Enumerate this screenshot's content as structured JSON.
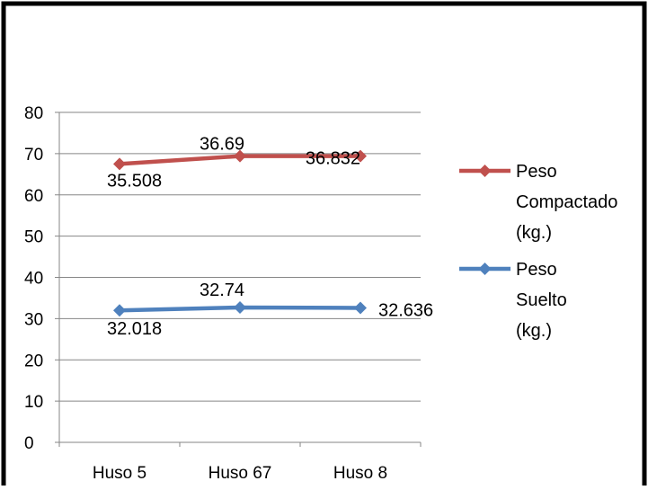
{
  "chart_data": {
    "type": "line",
    "categories": [
      "Huso 5",
      "Huso 67",
      "Huso 8"
    ],
    "ylim": [
      0,
      80
    ],
    "yticks": [
      0,
      10,
      20,
      30,
      40,
      50,
      60,
      70,
      80
    ],
    "grid": true,
    "legend_position": "right",
    "series": [
      {
        "name": "Peso Compactado (kg.)",
        "name_lines": [
          "Peso",
          "Compactado",
          "(kg.)"
        ],
        "values": [
          67.5,
          69.4,
          69.4
        ],
        "data_labels": [
          "35.508",
          "36.69",
          "36.832"
        ],
        "color": "#C0504D"
      },
      {
        "name": "Peso Suelto (kg.)",
        "name_lines": [
          "Peso",
          "Suelto",
          "(kg.)"
        ],
        "values": [
          32.0,
          32.7,
          32.6
        ],
        "data_labels": [
          "32.018",
          "32.74",
          "32.636"
        ],
        "color": "#4F81BD"
      }
    ]
  }
}
